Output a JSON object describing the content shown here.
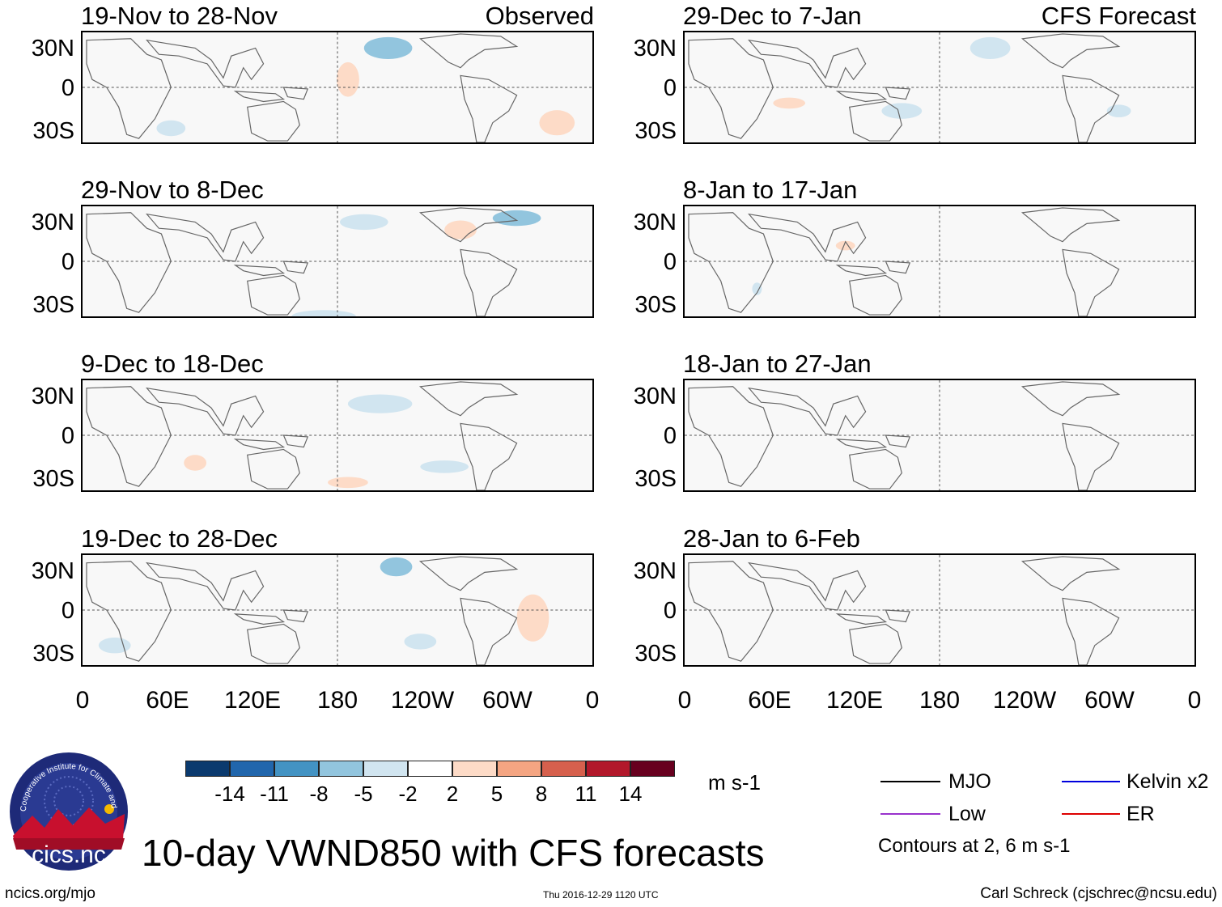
{
  "panels": [
    {
      "title": "19-Nov to 28-Nov",
      "tag": "Observed",
      "column": "left",
      "row": 0
    },
    {
      "title": "29-Nov to 8-Dec",
      "tag": "",
      "column": "left",
      "row": 1
    },
    {
      "title": "9-Dec to 18-Dec",
      "tag": "",
      "column": "left",
      "row": 2
    },
    {
      "title": "19-Dec to 28-Dec",
      "tag": "",
      "column": "left",
      "row": 3
    },
    {
      "title": "29-Dec to 7-Jan",
      "tag": "CFS Forecast",
      "column": "right",
      "row": 0
    },
    {
      "title": "8-Jan to 17-Jan",
      "tag": "",
      "column": "right",
      "row": 1
    },
    {
      "title": "18-Jan to 27-Jan",
      "tag": "",
      "column": "right",
      "row": 2
    },
    {
      "title": "28-Jan to 6-Feb",
      "tag": "",
      "column": "right",
      "row": 3
    }
  ],
  "chart_data": {
    "type": "heatmap",
    "title": "10-day VWND850 with CFS forecasts",
    "variable": "VWND850",
    "units": "m s-1",
    "y_ticks": [
      "30N",
      "0",
      "30S"
    ],
    "x_ticks": [
      "0",
      "60E",
      "120E",
      "180",
      "120W",
      "60W",
      "0"
    ],
    "colorbar": {
      "labels": [
        "-14",
        "-11",
        "-8",
        "-5",
        "-2",
        "2",
        "5",
        "8",
        "11",
        "14"
      ],
      "colors": [
        "#0b3a6e",
        "#2166ac",
        "#4393c3",
        "#92c5de",
        "#d1e5f0",
        "#ffffff",
        "#fddbc7",
        "#f4a582",
        "#d6604d",
        "#b2182b",
        "#67001f"
      ]
    },
    "legend": [
      {
        "label": "MJO",
        "color": "#000000"
      },
      {
        "label": "Kelvin x2",
        "color": "#0000dd"
      },
      {
        "label": "Low",
        "color": "#9932cc"
      },
      {
        "label": "ER",
        "color": "#dd0000"
      }
    ],
    "contour_note": "Contours at 2, 6 m s-1"
  },
  "footer": {
    "logo_text": "cics.nc",
    "logo_ring_text": "Cooperative Institute for Climate and Satellites",
    "url": "ncics.org/mjo",
    "timestamp": "Thu 2016-12-29 1120 UTC",
    "author": "Carl Schreck (cjschrec@ncsu.edu)"
  }
}
